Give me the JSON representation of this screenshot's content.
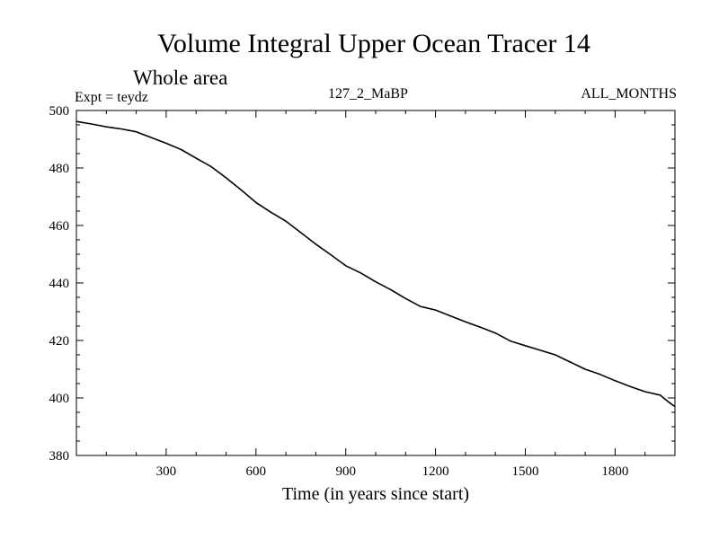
{
  "header": {
    "title": "Volume Integral Upper Ocean Tracer 14",
    "subtitle": "Whole area",
    "expt": "Expt = teydz",
    "run_id": "127_2_MaBP",
    "months": "ALL_MONTHS"
  },
  "colors": {
    "line": "#000000",
    "background": "#ffffff"
  },
  "chart_data": {
    "type": "line",
    "title": "Volume Integral Upper Ocean Tracer 14",
    "subtitle": "Whole area",
    "xlabel": "Time (in years since start)",
    "ylabel": "",
    "xlim": [
      0,
      2000
    ],
    "ylim": [
      380,
      500
    ],
    "xticks": [
      300,
      600,
      900,
      1200,
      1500,
      1800
    ],
    "xtick_labels": [
      "300",
      "600",
      "900",
      "1200",
      "1500",
      "1800"
    ],
    "yticks": [
      380,
      400,
      420,
      440,
      460,
      480,
      500
    ],
    "ytick_labels": [
      "380",
      "400",
      "420",
      "440",
      "460",
      "480",
      "500"
    ],
    "grid": false,
    "series": [
      {
        "name": "Tracer 14",
        "x": [
          0,
          50,
          100,
          150,
          200,
          250,
          300,
          350,
          400,
          450,
          500,
          550,
          600,
          650,
          700,
          750,
          800,
          850,
          900,
          950,
          1000,
          1050,
          1100,
          1150,
          1200,
          1250,
          1300,
          1350,
          1400,
          1450,
          1500,
          1550,
          1600,
          1650,
          1700,
          1750,
          1800,
          1850,
          1900,
          1950,
          1980,
          2000
        ],
        "y": [
          496.2,
          495.3,
          494.3,
          493.6,
          492.6,
          490.6,
          488.6,
          486.4,
          483.4,
          480.5,
          476.6,
          472.4,
          468.0,
          464.6,
          461.5,
          457.5,
          453.5,
          449.8,
          446.0,
          443.5,
          440.4,
          437.7,
          434.6,
          431.8,
          430.6,
          428.5,
          426.5,
          424.6,
          422.6,
          419.8,
          418.2,
          416.6,
          415.0,
          412.5,
          410.0,
          408.2,
          406.0,
          404.0,
          402.2,
          401.0,
          398.5,
          397.0
        ]
      }
    ]
  }
}
